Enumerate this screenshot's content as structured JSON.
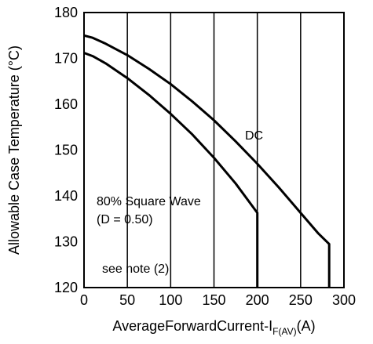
{
  "chart_data": {
    "type": "line",
    "xlabel_main": "AverageForwardCurrent-I",
    "xlabel_sub": "F(AV)",
    "xlabel_unit": "(A)",
    "ylabel": "Allowable Case Temperature (°C)",
    "xlim": [
      0,
      300
    ],
    "ylim": [
      120,
      180
    ],
    "x_ticks": [
      "0",
      "50",
      "100",
      "150",
      "200",
      "250",
      "300"
    ],
    "y_ticks": [
      "120",
      "130",
      "140",
      "150",
      "160",
      "170",
      "180"
    ],
    "grid": "vertical",
    "series": [
      {
        "name": "DC",
        "color": "#000000",
        "x": [
          0,
          10,
          25,
          50,
          75,
          100,
          125,
          150,
          175,
          200,
          225,
          250,
          270,
          283,
          283
        ],
        "y": [
          175.0,
          174.5,
          173.2,
          170.7,
          167.7,
          164.4,
          160.6,
          156.5,
          151.9,
          147.0,
          141.8,
          136.3,
          131.9,
          129.5,
          120
        ]
      },
      {
        "name": "80% Square Wave",
        "color": "#000000",
        "x": [
          0,
          10,
          25,
          50,
          75,
          100,
          125,
          150,
          175,
          200,
          200
        ],
        "y": [
          171.2,
          170.5,
          168.9,
          165.7,
          162.0,
          157.9,
          153.4,
          148.3,
          142.7,
          136.3,
          120
        ]
      }
    ],
    "annotations": {
      "dc_label": "DC",
      "square_wave_line1": "80% Square Wave",
      "square_wave_line2": "(D = 0.50)",
      "note": "see note (2)"
    }
  }
}
